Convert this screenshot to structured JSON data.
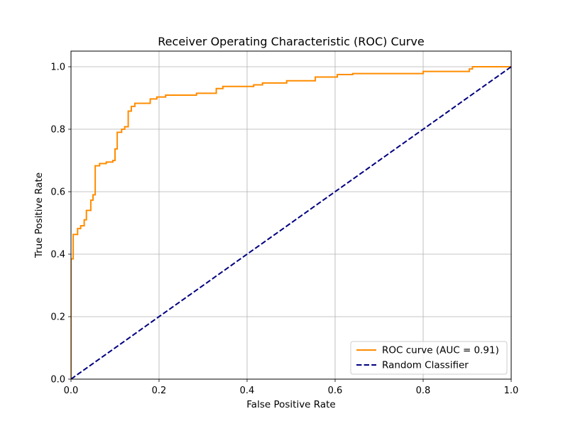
{
  "chart_data": {
    "type": "line",
    "title": "Receiver Operating Characteristic (ROC) Curve",
    "xlabel": "False Positive Rate",
    "ylabel": "True Positive Rate",
    "xlim": [
      0.0,
      1.0
    ],
    "ylim": [
      0.0,
      1.05
    ],
    "x_ticks": [
      "0.0",
      "0.2",
      "0.4",
      "0.6",
      "0.8",
      "1.0"
    ],
    "y_ticks": [
      "0.0",
      "0.2",
      "0.4",
      "0.6",
      "0.8",
      "1.0"
    ],
    "grid": true,
    "legend_position": "bottom-right",
    "series": [
      {
        "name": "ROC curve (AUC = 0.91)",
        "color": "#ff8c00",
        "style": "solid",
        "x": [
          0.0,
          0.0,
          0.0,
          0.0,
          0.005,
          0.005,
          0.015,
          0.015,
          0.022,
          0.022,
          0.03,
          0.03,
          0.035,
          0.035,
          0.045,
          0.045,
          0.05,
          0.05,
          0.055,
          0.055,
          0.065,
          0.065,
          0.08,
          0.08,
          0.095,
          0.095,
          0.1,
          0.1,
          0.105,
          0.105,
          0.115,
          0.115,
          0.122,
          0.122,
          0.13,
          0.13,
          0.137,
          0.137,
          0.145,
          0.145,
          0.18,
          0.18,
          0.195,
          0.195,
          0.215,
          0.215,
          0.285,
          0.285,
          0.33,
          0.33,
          0.345,
          0.345,
          0.415,
          0.415,
          0.435,
          0.435,
          0.49,
          0.49,
          0.555,
          0.555,
          0.605,
          0.605,
          0.64,
          0.64,
          0.8,
          0.8,
          0.905,
          0.905,
          0.912,
          0.912,
          1.0
        ],
        "y": [
          0.0,
          0.385,
          0.385,
          0.385,
          0.385,
          0.463,
          0.463,
          0.482,
          0.482,
          0.491,
          0.491,
          0.51,
          0.51,
          0.54,
          0.54,
          0.573,
          0.573,
          0.59,
          0.59,
          0.683,
          0.683,
          0.69,
          0.69,
          0.695,
          0.695,
          0.7,
          0.7,
          0.737,
          0.737,
          0.79,
          0.79,
          0.8,
          0.8,
          0.808,
          0.808,
          0.858,
          0.858,
          0.873,
          0.873,
          0.883,
          0.883,
          0.897,
          0.897,
          0.903,
          0.903,
          0.909,
          0.909,
          0.915,
          0.915,
          0.93,
          0.93,
          0.937,
          0.937,
          0.942,
          0.942,
          0.948,
          0.948,
          0.955,
          0.955,
          0.967,
          0.967,
          0.975,
          0.975,
          0.978,
          0.978,
          0.985,
          0.985,
          0.993,
          0.993,
          1.0,
          1.0
        ]
      },
      {
        "name": "Random Classifier",
        "color": "#000080",
        "style": "dashed",
        "x": [
          0.0,
          1.0
        ],
        "y": [
          0.0,
          1.0
        ]
      }
    ]
  }
}
